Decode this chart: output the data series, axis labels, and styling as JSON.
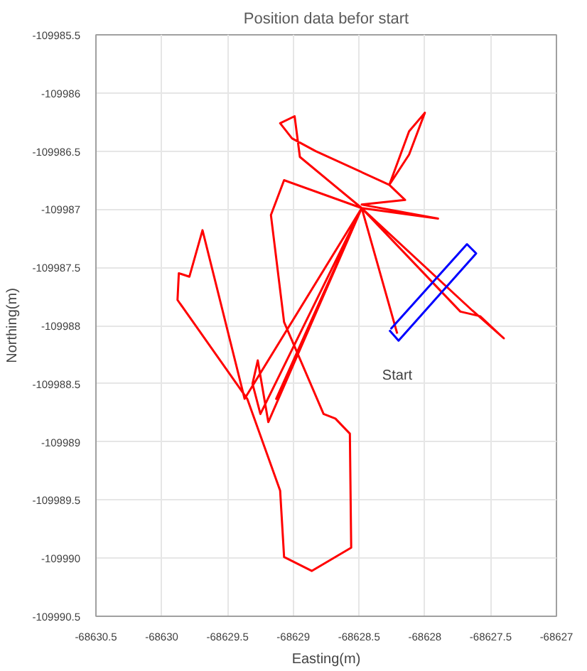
{
  "chart_data": {
    "type": "line",
    "title": "Position data befor start",
    "xlabel": "Easting(m)",
    "ylabel": "Northing(m)",
    "series": [
      {
        "color": "#ff0000",
        "x": [
          -68628.21,
          -68628.48,
          -68627.9,
          -68628.48,
          -68628.15,
          -68628.27,
          -68628.12,
          -68628.0,
          -68628.12,
          -68628.27,
          -68628.83,
          -68629.01,
          -68629.1,
          -68628.99,
          -68628.95,
          -68628.48,
          -68627.73,
          -68627.58,
          -68627.4,
          -68627.64,
          -68628.48,
          -68629.13,
          -68628.48,
          -68629.25,
          -68629.31,
          -68629.27,
          -68629.19,
          -68628.48,
          -68629.07,
          -68629.17,
          -68629.07,
          -68628.77,
          -68628.68,
          -68628.57,
          -68628.56,
          -68628.86,
          -68629.07,
          -68629.1,
          -68629.35,
          -68629.88,
          -68629.87,
          -68629.79,
          -68629.69,
          -68629.37,
          -68628.48
        ],
        "values": [
          -109988.07,
          -109986.99,
          -109987.08,
          -109986.96,
          -109986.92,
          -109986.79,
          -109986.53,
          -109986.17,
          -109986.33,
          -109986.79,
          -109986.5,
          -109986.39,
          -109986.26,
          -109986.2,
          -109986.55,
          -109986.99,
          -109987.88,
          -109987.92,
          -109988.11,
          -109987.87,
          -109986.99,
          -109988.63,
          -109986.99,
          -109988.76,
          -109988.5,
          -109988.3,
          -109988.83,
          -109986.99,
          -109986.75,
          -109987.05,
          -109987.97,
          -109988.76,
          -109988.8,
          -109988.93,
          -109989.91,
          -109990.11,
          -109989.99,
          -109989.42,
          -109988.63,
          -109987.78,
          -109987.55,
          -109987.58,
          -109987.18,
          -109988.63,
          -109986.99
        ]
      },
      {
        "color": "#0000ff",
        "x": [
          -68628.27,
          -68628.2,
          -68627.61,
          -68627.68,
          -68628.26
        ],
        "values": [
          -109988.04,
          -109988.13,
          -109987.38,
          -109987.3,
          -109988.03
        ]
      }
    ],
    "annotations": [
      "Start"
    ],
    "xlim": [
      -68630.5,
      -68627
    ],
    "xticks": [
      -68630.5,
      -68630,
      -68629.5,
      -68629,
      -68628.5,
      -68628,
      -68627.5,
      -68627
    ],
    "ylim": [
      -109990.5,
      -109985.5
    ],
    "yticks": [
      -109985.5,
      -109986,
      -109986.5,
      -109987,
      -109987.5,
      -109988,
      -109988.5,
      -109989,
      -109989.5,
      -109990,
      -109990.5
    ],
    "grid": true,
    "marker": "none",
    "line_style": "solid"
  }
}
